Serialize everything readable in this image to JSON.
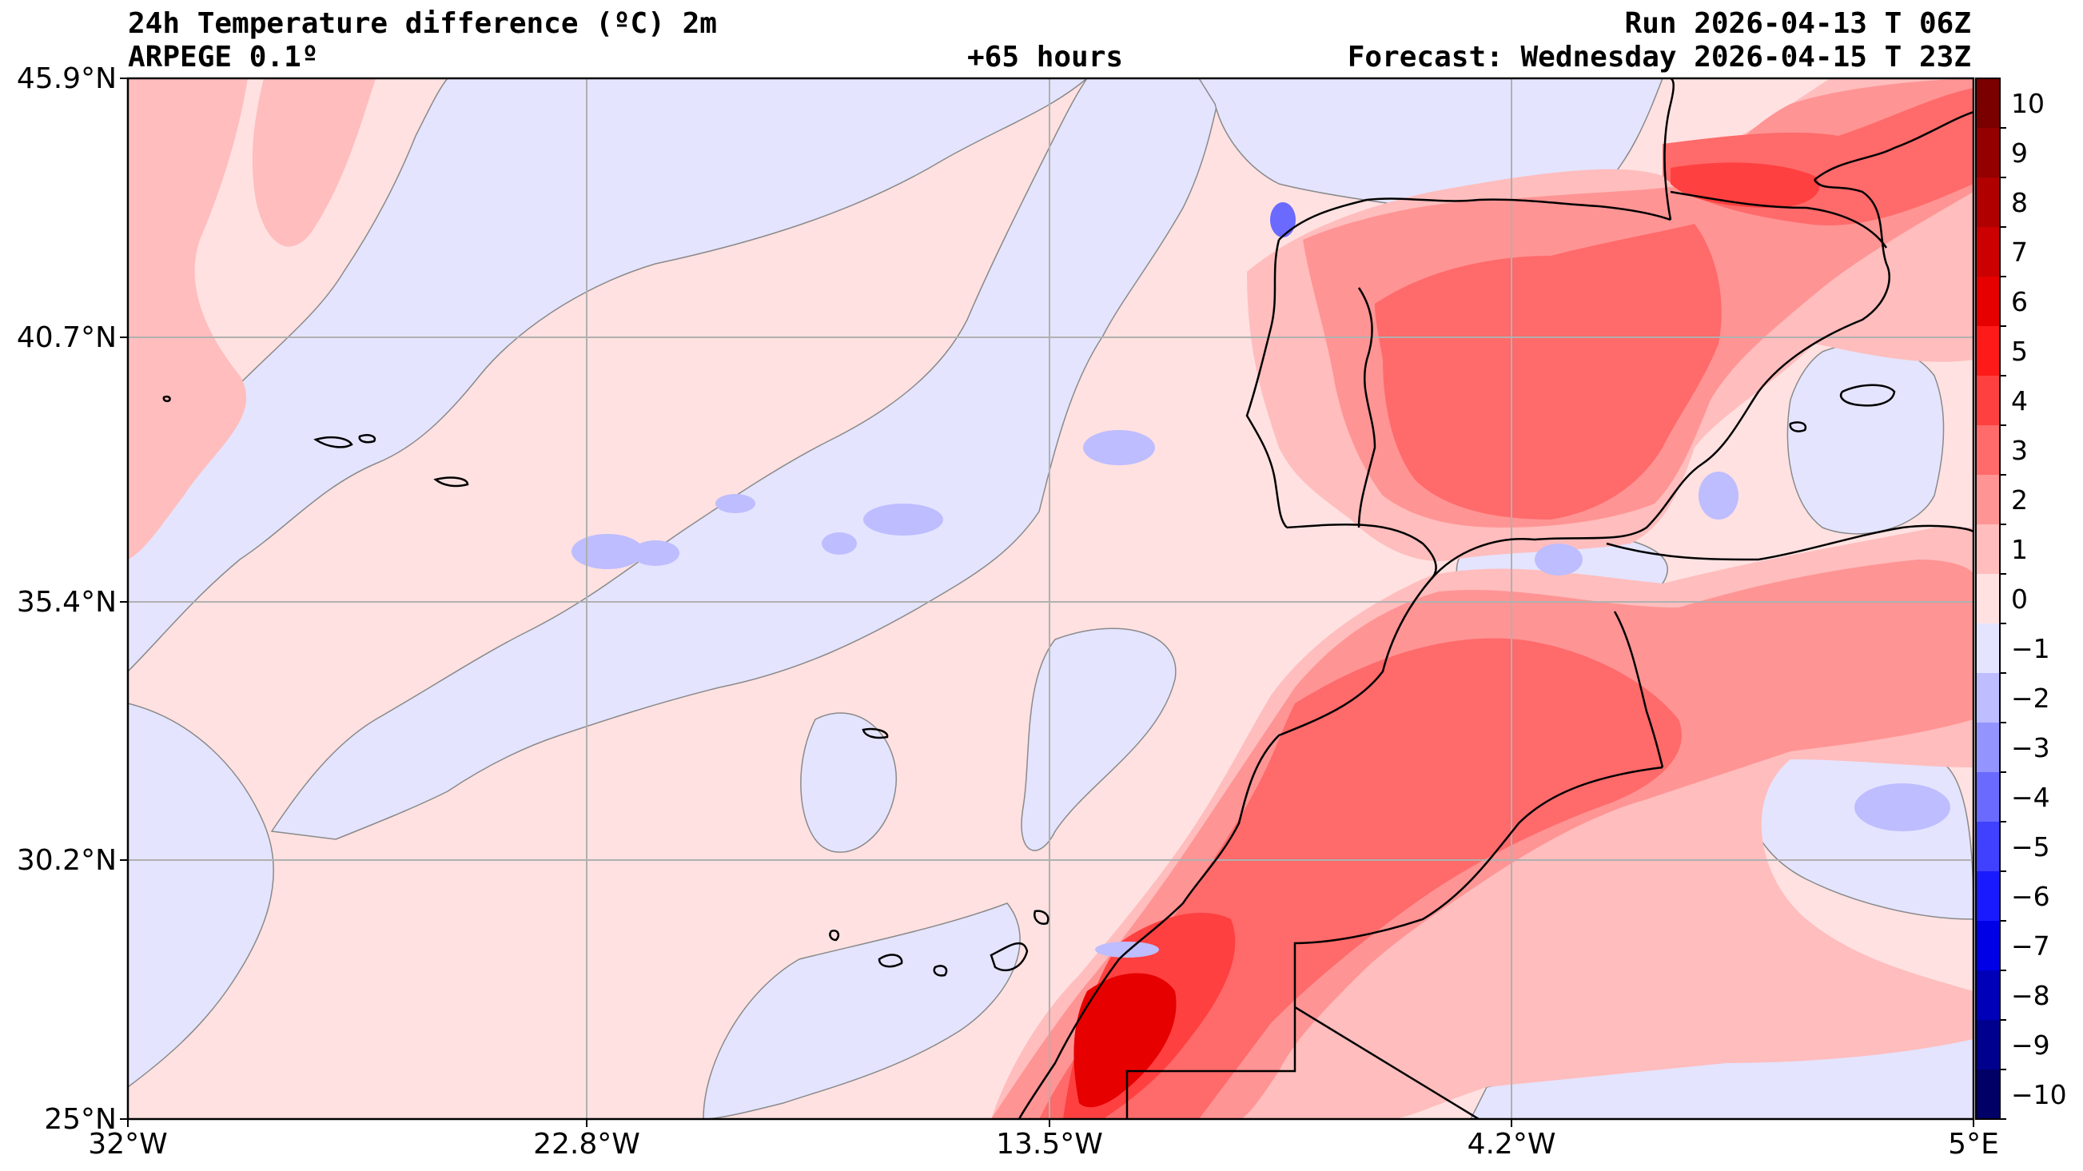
{
  "header": {
    "title": "24h Temperature difference (ºC) 2m",
    "model": "ARPEGE 0.1º",
    "lead": "+65 hours",
    "run": "Run 2026-04-13 T 06Z",
    "forecast": "Forecast: Wednesday 2026-04-15 T 23Z"
  },
  "axes": {
    "lat_labels": [
      "45.9°N",
      "40.7°N",
      "35.4°N",
      "30.2°N",
      "25°N"
    ],
    "lon_labels": [
      "32°W",
      "22.8°W",
      "13.5°W",
      "4.2°W",
      "5°E"
    ]
  },
  "colorbar": {
    "levels": [
      10,
      9,
      8,
      7,
      6,
      5,
      4,
      3,
      2,
      1,
      0,
      -1,
      -2,
      -3,
      -4,
      -5,
      -6,
      -7,
      -8,
      -9,
      -10
    ],
    "label_texts": [
      "10",
      "9",
      "8",
      "7",
      "6",
      "5",
      "4",
      "3",
      "2",
      "1",
      "0",
      "−1",
      "−2",
      "−3",
      "−4",
      "−5",
      "−6",
      "−7",
      "−8",
      "−9",
      "−10"
    ],
    "colors": [
      "#7a0000",
      "#930000",
      "#b00000",
      "#cc0000",
      "#e60000",
      "#ff1a1a",
      "#ff4040",
      "#ff6a6a",
      "#ff9494",
      "#ffbdbd",
      "#ffe1e1",
      "#e4e4ff",
      "#bdbdff",
      "#9494ff",
      "#6a6aff",
      "#4040ff",
      "#1a1aff",
      "#0000e6",
      "#0000b8",
      "#00008f",
      "#000066"
    ]
  },
  "legend_colors": {
    "ocean_weak_warm": "#ffe1e1",
    "ocean_weak_cool": "#e4e4ff",
    "warm_1_2": "#ffbdbd",
    "warm_2_3": "#ff9494",
    "warm_3_4": "#ff6a6a",
    "warm_4_5": "#ff4040",
    "cool_1_2": "#bdbdff"
  }
}
